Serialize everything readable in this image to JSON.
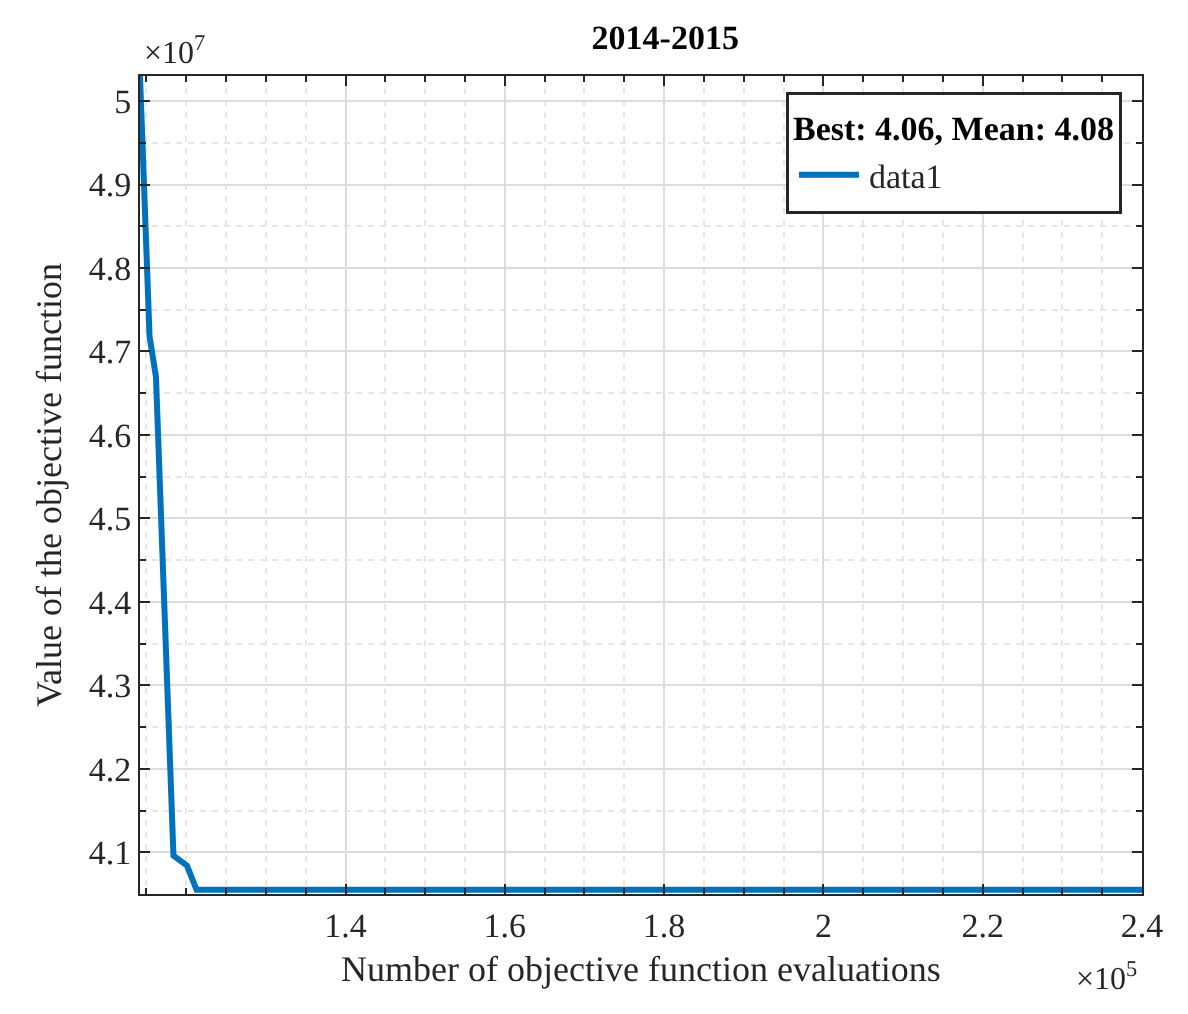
{
  "chart_data": {
    "type": "line",
    "title": "2014-2015",
    "xlabel": "Number of objective function evaluations",
    "ylabel": "Value of the objective function",
    "legend_title": "Best: 4.06, Mean: 4.08",
    "x": [
      1.142,
      1.154,
      1.162,
      1.184,
      1.201,
      1.213,
      2.4
    ],
    "series": [
      {
        "name": "data1",
        "color": "#0072bd",
        "values": [
          5.03,
          4.718,
          4.67,
          4.096,
          4.084,
          4.055,
          4.055
        ]
      }
    ],
    "xlim": [
      1.142,
      2.4
    ],
    "ylim": [
      4.05,
      5.03
    ],
    "xticks": [
      1.4,
      1.6,
      1.8,
      2,
      2.2,
      2.4
    ],
    "yticks": [
      4.1,
      4.2,
      4.3,
      4.4,
      4.5,
      4.6,
      4.7,
      4.8,
      4.9,
      5
    ],
    "annotations": [
      "×10$^{7}$",
      "×10$^{5}$"
    ],
    "grid": true,
    "legend": "top right",
    "marker": "none",
    "line_style": "solid"
  }
}
